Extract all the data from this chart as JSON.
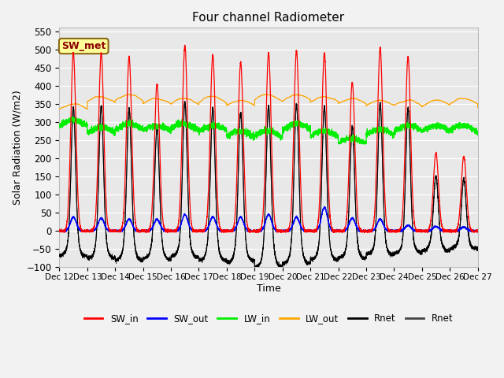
{
  "title": "Four channel Radiometer",
  "xlabel": "Time",
  "ylabel": "Solar Radiation (W/m2)",
  "ylim": [
    -100,
    560
  ],
  "xlim": [
    0,
    360
  ],
  "fig_bg": "#f2f2f2",
  "plot_bg": "#e8e8e8",
  "annotation_text": "SW_met",
  "annotation_bg": "#ffff99",
  "annotation_border": "#8b6914",
  "tick_labels": [
    "Dec 12",
    "Dec 13",
    "Dec 14",
    "Dec 15",
    "Dec 16",
    "Dec 17",
    "Dec 18",
    "Dec 19",
    "Dec 20",
    "Dec 21",
    "Dec 22",
    "Dec 23",
    "Dec 24",
    "Dec 25",
    "Dec 26",
    "Dec 27"
  ],
  "tick_positions": [
    0,
    24,
    48,
    72,
    96,
    120,
    144,
    168,
    192,
    216,
    240,
    264,
    288,
    312,
    336,
    360
  ],
  "legend_labels": [
    "SW_in",
    "SW_out",
    "LW_in",
    "LW_out",
    "Rnet",
    "Rnet"
  ],
  "legend_colors": [
    "#ff0000",
    "#0000ff",
    "#00ee00",
    "#ffa500",
    "#000000",
    "#444444"
  ],
  "sw_peak_vals": [
    490,
    490,
    480,
    405,
    510,
    485,
    465,
    490,
    497,
    490,
    410,
    505,
    480,
    215,
    205,
    0
  ],
  "sw_out_peaks": [
    38,
    35,
    32,
    32,
    45,
    38,
    38,
    45,
    38,
    65,
    35,
    32,
    15,
    12,
    10,
    0
  ],
  "rnet_night_vals": [
    -70,
    -75,
    -80,
    -78,
    -72,
    -82,
    -85,
    -100,
    -90,
    -80,
    -75,
    -65,
    -60,
    -55,
    -50,
    -45
  ],
  "n_points": 5000,
  "yticks": [
    -100,
    -50,
    0,
    50,
    100,
    150,
    200,
    250,
    300,
    350,
    400,
    450,
    500,
    550
  ]
}
